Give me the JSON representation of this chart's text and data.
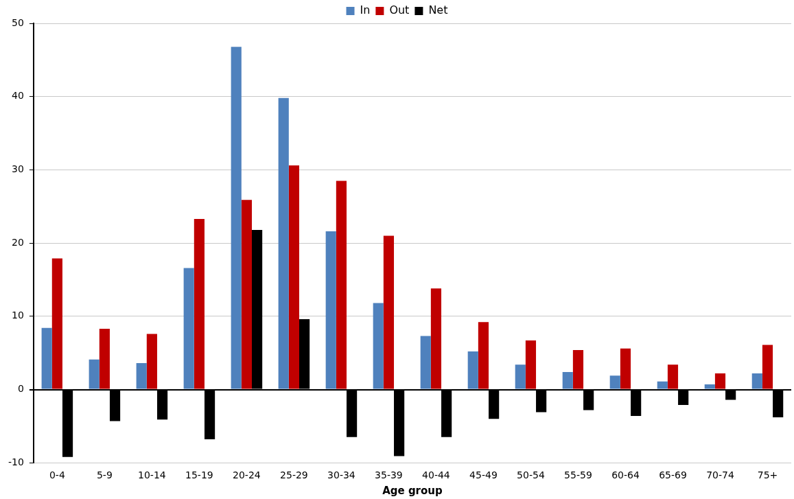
{
  "chart_data": {
    "type": "bar",
    "xlabel": "Age group",
    "categories": [
      "0-4",
      "5-9",
      "10-14",
      "15-19",
      "20-24",
      "25-29",
      "30-34",
      "35-39",
      "40-44",
      "45-49",
      "50-54",
      "55-59",
      "60-64",
      "65-69",
      "70-74",
      "75+"
    ],
    "series": [
      {
        "name": "In",
        "color": "#4f81bd",
        "values": [
          8.4,
          4.1,
          3.6,
          16.6,
          46.8,
          39.8,
          21.6,
          11.8,
          7.3,
          5.2,
          3.4,
          2.4,
          1.9,
          1.1,
          0.7,
          2.2
        ]
      },
      {
        "name": "Out",
        "color": "#c00000",
        "values": [
          17.9,
          8.3,
          7.6,
          23.3,
          25.9,
          30.6,
          28.5,
          21.0,
          13.8,
          9.2,
          6.7,
          5.4,
          5.6,
          3.4,
          2.2,
          6.1
        ]
      },
      {
        "name": "Net",
        "color": "#000000",
        "values": [
          -9.2,
          -4.3,
          -4.1,
          -6.8,
          21.8,
          9.6,
          -6.5,
          -9.1,
          -6.5,
          -4.0,
          -3.1,
          -2.8,
          -3.6,
          -2.1,
          -1.4,
          -3.8
        ]
      }
    ],
    "ylim": [
      -10,
      50
    ],
    "yticks": [
      -10,
      0,
      10,
      20,
      30,
      40,
      50
    ],
    "grid": "y",
    "legend": "top"
  }
}
